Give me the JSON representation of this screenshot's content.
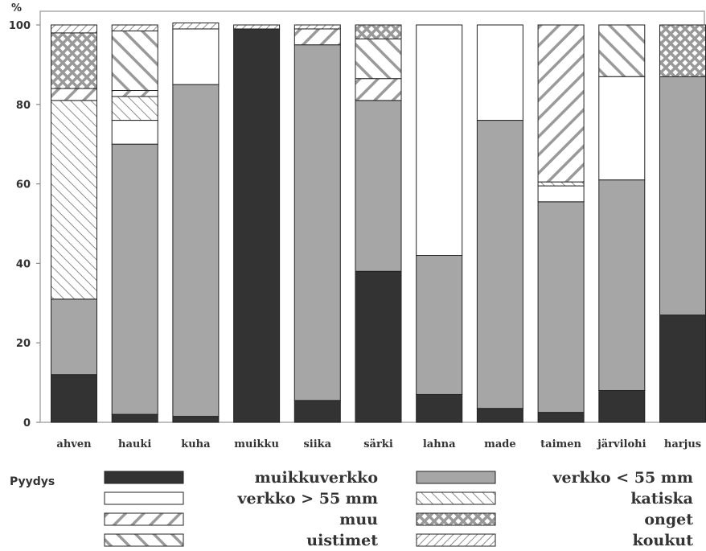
{
  "chart_data": {
    "type": "bar",
    "stacked": true,
    "y_unit": "%",
    "ylim": [
      0,
      100
    ],
    "yticks": [
      0,
      20,
      40,
      60,
      80,
      100
    ],
    "grid": false,
    "categories": [
      "ahven",
      "hauki",
      "kuha",
      "muikku",
      "siika",
      "särki",
      "lahna",
      "made",
      "taimen",
      "järvilohi",
      "harjus"
    ],
    "series": [
      {
        "name": "muikkuverkko",
        "pattern": "solid-dark",
        "color": "#333333",
        "values": [
          12,
          2,
          1.5,
          99,
          5.5,
          38,
          7,
          3.5,
          2.5,
          8,
          27
        ]
      },
      {
        "name": "verkko < 55 mm",
        "pattern": "solid-gray",
        "color": "#a6a6a6",
        "values": [
          19,
          68,
          83.5,
          0,
          89.5,
          43,
          35,
          72.5,
          53,
          53,
          60
        ]
      },
      {
        "name": "verkko > 55 mm",
        "pattern": "white",
        "color": "#ffffff",
        "values": [
          0,
          6,
          14,
          0,
          0,
          0,
          58,
          24,
          4,
          26,
          0
        ]
      },
      {
        "name": "katiska",
        "pattern": "thin-diagonal",
        "color": "#999999",
        "values": [
          50,
          6,
          0,
          0,
          0,
          0,
          0,
          0,
          1,
          0,
          0
        ]
      },
      {
        "name": "muu",
        "pattern": "backslash-bold",
        "color": "#999999",
        "values": [
          3,
          1.5,
          0,
          0,
          4,
          5.5,
          0,
          0,
          39.5,
          0,
          0
        ]
      },
      {
        "name": "uistimet",
        "pattern": "diagonal-bold",
        "color": "#999999",
        "values": [
          0,
          15,
          0,
          0,
          0,
          10,
          0,
          0,
          0,
          13,
          0
        ]
      },
      {
        "name": "onget",
        "pattern": "crosshatch",
        "color": "#999999",
        "values": [
          14,
          0,
          0,
          0,
          0,
          3.5,
          0,
          0,
          0,
          0,
          13
        ]
      },
      {
        "name": "koukut",
        "pattern": "backslash-thin",
        "color": "#999999",
        "values": [
          2,
          1.5,
          1.5,
          1,
          1,
          0,
          0,
          0,
          0,
          0,
          0
        ]
      }
    ],
    "legend": {
      "title": "Pyydys",
      "position": "bottom",
      "order": [
        "muikkuverkko",
        "verkko < 55 mm",
        "verkko > 55 mm",
        "katiska",
        "muu",
        "onget",
        "uistimet",
        "koukut"
      ]
    }
  }
}
